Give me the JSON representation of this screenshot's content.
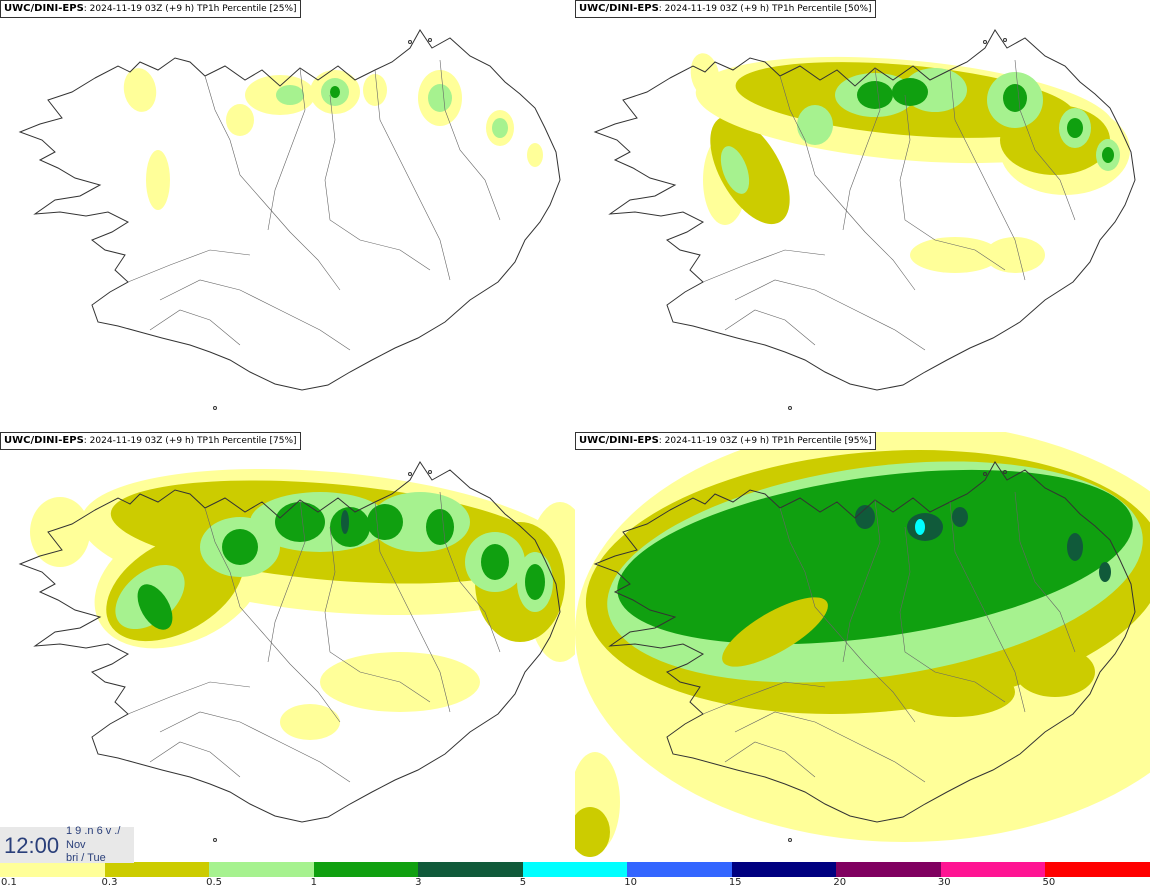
{
  "panels": [
    {
      "model": "UWC/DINI-EPS",
      "info": ": 2024-11-19 03Z (+9 h) TP1h Percentile [25%]",
      "level": 0
    },
    {
      "model": "UWC/DINI-EPS",
      "info": ": 2024-11-19 03Z (+9 h) TP1h Percentile [50%]",
      "level": 1
    },
    {
      "model": "UWC/DINI-EPS",
      "info": ": 2024-11-19 03Z (+9 h) TP1h Percentile [75%]",
      "level": 2
    },
    {
      "model": "UWC/DINI-EPS",
      "info": ": 2024-11-19 03Z (+9 h) TP1h Percentile [95%]",
      "level": 3
    }
  ],
  "time": {
    "clock": "12:00",
    "line1": "1 9 .n 6 v ./",
    "line2": "Nov",
    "line3": "bri / Tue"
  },
  "colors": {
    "yellow": "#ffff99",
    "olive": "#cccc00",
    "lightgreen": "#a6f28f",
    "green": "#10a010",
    "darkgreen": "#105a3a",
    "cyan": "#00ffff",
    "coast": "#333333"
  },
  "scale": {
    "colors": [
      "#ffff99",
      "#cccc00",
      "#a6f28f",
      "#10a010",
      "#105a3a",
      "#00ffff",
      "#3366ff",
      "#000080",
      "#800060",
      "#ff1493",
      "#ff0000"
    ],
    "ticks": [
      "0.1",
      "0.3",
      "0.5",
      "1",
      "3",
      "5",
      "10",
      "15",
      "20",
      "30",
      "50"
    ]
  }
}
